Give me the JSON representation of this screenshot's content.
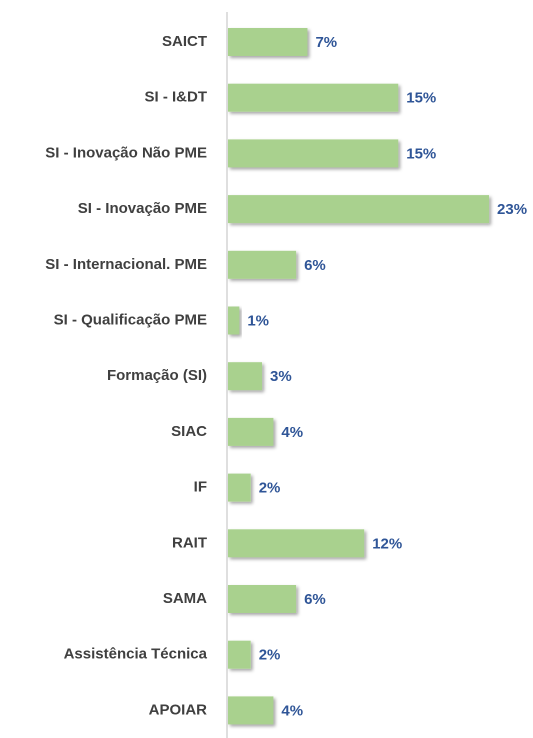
{
  "chart_data": {
    "type": "bar",
    "orientation": "horizontal",
    "categories": [
      "SAICT",
      "SI - I&DT",
      "SI - Inovação Não PME",
      "SI - Inovação PME",
      "SI - Internacional. PME",
      "SI - Qualificação PME",
      "Formação (SI)",
      "SIAC",
      "IF",
      "RAIT",
      "SAMA",
      "Assistência Técnica",
      "APOIAR"
    ],
    "values": [
      7,
      15,
      15,
      23,
      6,
      1,
      3,
      4,
      2,
      12,
      6,
      2,
      4
    ],
    "value_labels": [
      "7%",
      "15%",
      "15%",
      "23%",
      "6%",
      "1%",
      "3%",
      "4%",
      "2%",
      "12%",
      "6%",
      "2%",
      "4%"
    ],
    "color": "#a9d18e"
  }
}
